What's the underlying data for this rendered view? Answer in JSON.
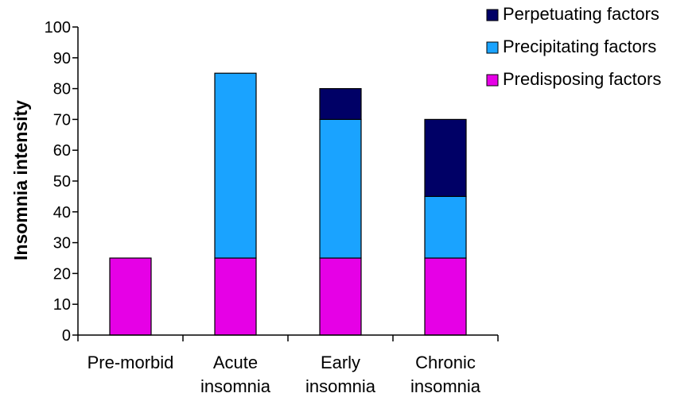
{
  "chart_data": {
    "type": "bar",
    "stacked": true,
    "categories": [
      [
        "Pre-morbid"
      ],
      [
        "Acute",
        "insomnia"
      ],
      [
        "Early",
        "insomnia"
      ],
      [
        "Chronic",
        "insomnia"
      ]
    ],
    "series": [
      {
        "name": "Predisposing factors",
        "color": "#e600e6",
        "values": [
          25,
          25,
          25,
          25
        ]
      },
      {
        "name": "Precipitating factors",
        "color": "#1aa3ff",
        "values": [
          0,
          60,
          45,
          20
        ]
      },
      {
        "name": "Perpetuating factors",
        "color": "#000066",
        "values": [
          0,
          0,
          10,
          25
        ]
      }
    ],
    "title": "",
    "xlabel": "",
    "ylabel": "Insomnia intensity",
    "ylim": [
      0,
      100
    ],
    "yticks": [
      0,
      10,
      20,
      30,
      40,
      50,
      60,
      70,
      80,
      90,
      100
    ],
    "grid": false,
    "legend": {
      "position": "top-right",
      "order": [
        "Perpetuating factors",
        "Precipitating factors",
        "Predisposing factors"
      ]
    }
  }
}
